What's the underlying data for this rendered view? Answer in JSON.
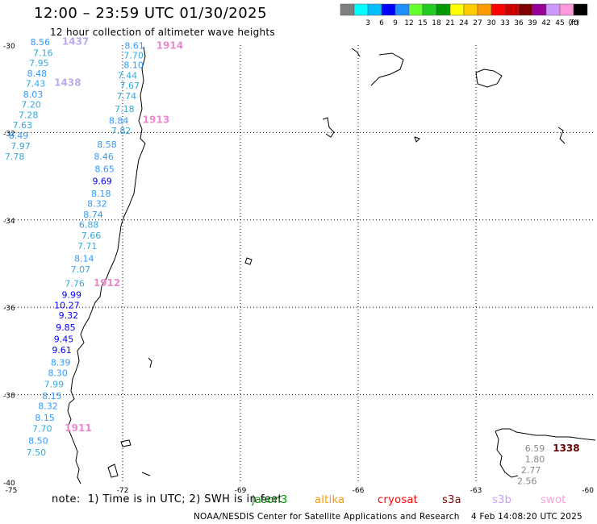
{
  "header": {
    "title": "12:00 – 23:59 UTC 01/30/2025",
    "subtitle": "12 hour collection of altimeter wave heights"
  },
  "legend": {
    "unit": "(ft)",
    "bins": [
      {
        "label": "",
        "color": "#7f7f7f"
      },
      {
        "label": "3",
        "color": "#00ffff"
      },
      {
        "label": "6",
        "color": "#00bfff"
      },
      {
        "label": "9",
        "color": "#0000ff"
      },
      {
        "label": "12",
        "color": "#1e90ff"
      },
      {
        "label": "15",
        "color": "#66ff33"
      },
      {
        "label": "18",
        "color": "#22cc22"
      },
      {
        "label": "21",
        "color": "#009900"
      },
      {
        "label": "24",
        "color": "#ffff00"
      },
      {
        "label": "27",
        "color": "#ffcc00"
      },
      {
        "label": "30",
        "color": "#ff9900"
      },
      {
        "label": "33",
        "color": "#ff0000"
      },
      {
        "label": "36",
        "color": "#cc0000"
      },
      {
        "label": "39",
        "color": "#800000"
      },
      {
        "label": "42",
        "color": "#990099"
      },
      {
        "label": "45",
        "color": "#cc99ff"
      },
      {
        "label": "70",
        "color": "#ff99dd"
      },
      {
        "label": "",
        "color": "#000000"
      }
    ]
  },
  "axes": {
    "lat_ticks": [
      "-30",
      "-32",
      "-34",
      "-36",
      "-38",
      "-40"
    ],
    "lon_ticks": [
      "-75",
      "-72",
      "-69",
      "-66",
      "-63",
      "-60"
    ]
  },
  "labels": [
    {
      "text": "8.56",
      "lat": -30.0,
      "lon": -74.1,
      "color": "#3399ff"
    },
    {
      "text": "1437",
      "lat": -29.99,
      "lon": -73.2,
      "color": "#bbaaee"
    },
    {
      "text": "8.61",
      "lat": -30.08,
      "lon": -71.7,
      "color": "#3399ff"
    },
    {
      "text": "1914",
      "lat": -30.08,
      "lon": -70.8,
      "color": "#ee88cc"
    },
    {
      "text": "7.16",
      "lat": -30.25,
      "lon": -74.03,
      "color": "#33aadd"
    },
    {
      "text": "7.70",
      "lat": -30.3,
      "lon": -71.72,
      "color": "#33aadd"
    },
    {
      "text": "7.95",
      "lat": -30.48,
      "lon": -74.13,
      "color": "#33aadd"
    },
    {
      "text": "8.10",
      "lat": -30.53,
      "lon": -71.72,
      "color": "#3399ff"
    },
    {
      "text": "8.48",
      "lat": -30.72,
      "lon": -74.18,
      "color": "#3399ff"
    },
    {
      "text": "7.44",
      "lat": -30.77,
      "lon": -71.88,
      "color": "#33aadd"
    },
    {
      "text": "7.43",
      "lat": -30.95,
      "lon": -74.22,
      "color": "#33aadd"
    },
    {
      "text": "1438",
      "lat": -30.93,
      "lon": -73.4,
      "color": "#bbaaee"
    },
    {
      "text": "7.67",
      "lat": -31.0,
      "lon": -71.82,
      "color": "#33aadd"
    },
    {
      "text": "8.03",
      "lat": -31.2,
      "lon": -74.28,
      "color": "#3399ff"
    },
    {
      "text": "7.74",
      "lat": -31.24,
      "lon": -71.9,
      "color": "#33aadd"
    },
    {
      "text": "7.20",
      "lat": -31.43,
      "lon": -74.33,
      "color": "#33aadd"
    },
    {
      "text": "7.18",
      "lat": -31.53,
      "lon": -71.95,
      "color": "#33aadd"
    },
    {
      "text": "7.28",
      "lat": -31.67,
      "lon": -74.4,
      "color": "#33aadd"
    },
    {
      "text": "8.84",
      "lat": -31.8,
      "lon": -72.1,
      "color": "#3399ff"
    },
    {
      "text": "1913",
      "lat": -31.78,
      "lon": -71.15,
      "color": "#ee88cc"
    },
    {
      "text": "7.63",
      "lat": -31.9,
      "lon": -74.55,
      "color": "#33aadd"
    },
    {
      "text": "7.82",
      "lat": -32.03,
      "lon": -72.04,
      "color": "#33aadd"
    },
    {
      "text": "8.49",
      "lat": -32.14,
      "lon": -74.65,
      "color": "#3399ff"
    },
    {
      "text": "8.58",
      "lat": -32.34,
      "lon": -72.4,
      "color": "#3399ff"
    },
    {
      "text": "7.97",
      "lat": -32.38,
      "lon": -74.6,
      "color": "#33aadd"
    },
    {
      "text": "7.78",
      "lat": -32.62,
      "lon": -74.75,
      "color": "#33aadd"
    },
    {
      "text": "8.46",
      "lat": -32.62,
      "lon": -72.48,
      "color": "#3399ff"
    },
    {
      "text": "8.65",
      "lat": -32.91,
      "lon": -72.46,
      "color": "#3399ff"
    },
    {
      "text": "9.69",
      "lat": -33.18,
      "lon": -72.52,
      "color": "#0000ff"
    },
    {
      "text": "8.18",
      "lat": -33.47,
      "lon": -72.55,
      "color": "#3399ff"
    },
    {
      "text": "8.32",
      "lat": -33.7,
      "lon": -72.65,
      "color": "#3399ff"
    },
    {
      "text": "8.74",
      "lat": -33.95,
      "lon": -72.75,
      "color": "#3399ff"
    },
    {
      "text": "6.88",
      "lat": -34.18,
      "lon": -72.86,
      "color": "#33aadd"
    },
    {
      "text": "7.66",
      "lat": -34.43,
      "lon": -72.8,
      "color": "#33aadd"
    },
    {
      "text": "7.71",
      "lat": -34.67,
      "lon": -72.9,
      "color": "#33aadd"
    },
    {
      "text": "8.14",
      "lat": -34.95,
      "lon": -72.98,
      "color": "#3399ff"
    },
    {
      "text": "7.07",
      "lat": -35.2,
      "lon": -73.07,
      "color": "#33aadd"
    },
    {
      "text": "7.76",
      "lat": -35.53,
      "lon": -73.22,
      "color": "#33aadd"
    },
    {
      "text": "1912",
      "lat": -35.52,
      "lon": -72.4,
      "color": "#ee88cc"
    },
    {
      "text": "9.99",
      "lat": -35.78,
      "lon": -73.3,
      "color": "#0000ff"
    },
    {
      "text": "10.27",
      "lat": -36.02,
      "lon": -73.42,
      "color": "#0000ff"
    },
    {
      "text": "9.32",
      "lat": -36.25,
      "lon": -73.38,
      "color": "#0000ff"
    },
    {
      "text": "9.85",
      "lat": -36.53,
      "lon": -73.45,
      "color": "#0000ff"
    },
    {
      "text": "9.45",
      "lat": -36.8,
      "lon": -73.5,
      "color": "#0000ff"
    },
    {
      "text": "9.61",
      "lat": -37.05,
      "lon": -73.55,
      "color": "#0000ff"
    },
    {
      "text": "8.39",
      "lat": -37.33,
      "lon": -73.58,
      "color": "#3399ff"
    },
    {
      "text": "8.30",
      "lat": -37.57,
      "lon": -73.65,
      "color": "#3399ff"
    },
    {
      "text": "7.99",
      "lat": -37.83,
      "lon": -73.75,
      "color": "#33aadd"
    },
    {
      "text": "8.15",
      "lat": -38.1,
      "lon": -73.8,
      "color": "#3399ff"
    },
    {
      "text": "8.32",
      "lat": -38.33,
      "lon": -73.9,
      "color": "#3399ff"
    },
    {
      "text": "8.15",
      "lat": -38.6,
      "lon": -73.98,
      "color": "#3399ff"
    },
    {
      "text": "7.70",
      "lat": -38.85,
      "lon": -74.05,
      "color": "#33aadd"
    },
    {
      "text": "1911",
      "lat": -38.84,
      "lon": -73.13,
      "color": "#ee88cc"
    },
    {
      "text": "8.50",
      "lat": -39.12,
      "lon": -74.15,
      "color": "#3399ff"
    },
    {
      "text": "7.50",
      "lat": -39.39,
      "lon": -74.2,
      "color": "#33aadd"
    },
    {
      "text": "6.59",
      "lat": -39.3,
      "lon": -61.5,
      "color": "#888888"
    },
    {
      "text": "1338",
      "lat": -39.3,
      "lon": -60.7,
      "color": "#660000"
    },
    {
      "text": "1.80",
      "lat": -39.55,
      "lon": -61.5,
      "color": "#888888"
    },
    {
      "text": "2.77",
      "lat": -39.8,
      "lon": -61.6,
      "color": "#888888"
    },
    {
      "text": "2.56",
      "lat": -40.05,
      "lon": -61.7,
      "color": "#888888"
    }
  ],
  "footer": {
    "note": "note:  1) Time is in UTC; 2) SWH is in feet",
    "satellites": [
      {
        "name": "jason3",
        "color": "#009900"
      },
      {
        "name": "altika",
        "color": "#ff9900"
      },
      {
        "name": "cryosat",
        "color": "#ff0000"
      },
      {
        "name": "s3a",
        "color": "#800000"
      },
      {
        "name": "s3b",
        "color": "#cc99ff"
      },
      {
        "name": "swot",
        "color": "#ff99dd"
      }
    ],
    "credit": "NOAA/NESDIS Center for Satellite Applications and Research",
    "generated": "4 Feb 14:08:20 UTC 2025"
  }
}
